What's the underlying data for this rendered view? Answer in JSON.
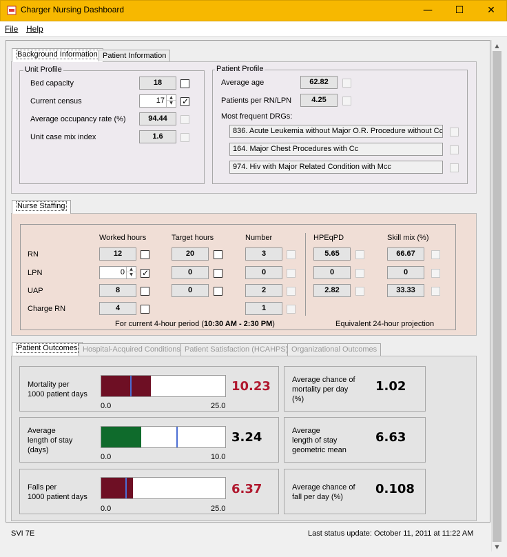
{
  "window": {
    "title": "Charger Nursing Dashboard",
    "minimize": "—",
    "maximize": "☐",
    "close": "✕"
  },
  "menu": {
    "file": "File",
    "help": "Help"
  },
  "top_tabs": [
    "Background Information",
    "Patient Information"
  ],
  "unit_profile": {
    "title": "Unit Profile",
    "bed_capacity_label": "Bed capacity",
    "bed_capacity": "18",
    "current_census_label": "Current census",
    "current_census": "17",
    "occupancy_label": "Average occupancy rate (%)",
    "occupancy": "94.44",
    "case_mix_label": "Unit case mix index",
    "case_mix": "1.6"
  },
  "patient_profile": {
    "title": "Patient Profile",
    "avg_age_label": "Average age",
    "avg_age": "62.82",
    "ratio_label": "Patients per RN/LPN",
    "ratio": "4.25",
    "drgs_label": "Most frequent DRGs:",
    "drgs": [
      "836. Acute Leukemia without Major O.R. Procedure without Cc/",
      "164. Major Chest Procedures with Cc",
      "974. Hiv with Major Related Condition with Mcc"
    ]
  },
  "staffing": {
    "tab": "Nurse Staffing",
    "headers": {
      "worked": "Worked hours",
      "target": "Target hours",
      "number": "Number",
      "hpeqpd": "HPEqPD",
      "skill": "Skill mix (%)"
    },
    "rows": [
      {
        "role": "RN",
        "worked": "12",
        "target": "20",
        "number": "3",
        "hpeqpd": "5.65",
        "skill": "66.67"
      },
      {
        "role": "LPN",
        "worked": "0",
        "target": "0",
        "number": "0",
        "hpeqpd": "0",
        "skill": "0"
      },
      {
        "role": "UAP",
        "worked": "8",
        "target": "0",
        "number": "2",
        "hpeqpd": "2.82",
        "skill": "33.33"
      },
      {
        "role": "Charge RN",
        "worked": "4",
        "number": "1"
      }
    ],
    "period_prefix": "For current 4-hour period (",
    "period_time": "10:30 AM - 2:30 PM",
    "period_suffix": ")",
    "projection": "Equivalent 24-hour projection"
  },
  "outcome_tabs": [
    "Patient Outcomes",
    "Hospital-Acquired Conditions",
    "Patient Satisfaction (HCAHPS)",
    "Organizational Outcomes"
  ],
  "outcomes": [
    {
      "label_lines": [
        "Mortality per",
        "1000 patient days"
      ],
      "value": "10.23",
      "value_color": "#b0182e",
      "min": "0.0",
      "max": "25.0",
      "fill_fraction": 0.4,
      "fill_color": "#6e0f24",
      "marker_fraction": 0.24
    },
    {
      "label_lines": [
        "Average",
        "length of stay",
        "(days)"
      ],
      "value": "3.24",
      "value_color": "#000000",
      "min": "0.0",
      "max": "10.0",
      "fill_fraction": 0.324,
      "fill_color": "#0f6b2c",
      "marker_fraction": 0.61
    },
    {
      "label_lines": [
        "Falls per",
        "1000 patient days"
      ],
      "value": "6.37",
      "value_color": "#b0182e",
      "min": "0.0",
      "max": "25.0",
      "fill_fraction": 0.255,
      "fill_color": "#6e0f24",
      "marker_fraction": 0.2
    }
  ],
  "side_stats": [
    {
      "label_lines": [
        "Average chance of",
        "mortality per day",
        "(%)"
      ],
      "value": "1.02"
    },
    {
      "label_lines": [
        "Average",
        "length of stay",
        "geometric mean"
      ],
      "value": "6.63"
    },
    {
      "label_lines": [
        "Average chance of",
        "fall per day (%)"
      ],
      "value": "0.108"
    }
  ],
  "status": {
    "unit": "SVI 7E",
    "last_update": "Last status update:  October 11, 2011 at 11:22 AM"
  }
}
